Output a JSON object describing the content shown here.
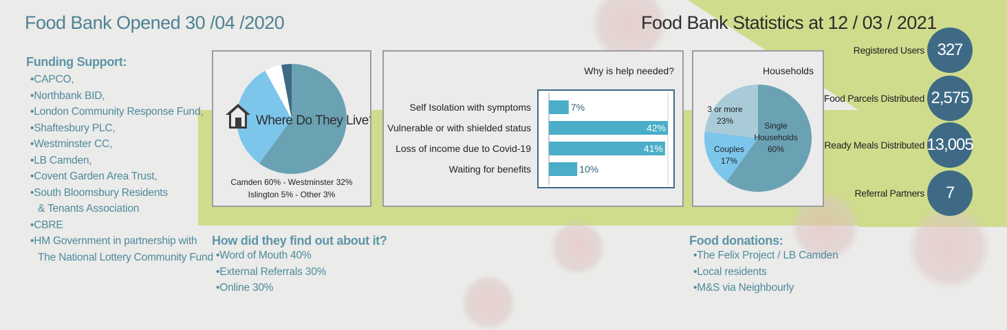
{
  "title_left": "Food Bank Opened 30 /04 /2020",
  "title_right": "Food Bank Statistics at 12 / 03 / 2021",
  "funding": {
    "heading": "Funding Support:",
    "items": [
      "CAPCO,",
      "Northbank BID,",
      "London Community Response Fund,",
      "Shaftesbury PLC,",
      "Westminster CC,",
      "LB Camden,",
      "Covent Garden Area Trust,",
      "South Bloomsbury Residents",
      "& Tenants Association",
      "CBRE",
      "HM Government in partnership with",
      "The National Lottery Community Fund"
    ]
  },
  "find_out": {
    "heading": "How did they find out about it?",
    "items": [
      "Word of Mouth 40%",
      "External Referrals 30%",
      "Online 30%"
    ]
  },
  "donations": {
    "heading": "Food donations:",
    "items": [
      "The Felix Project / LB Camden",
      "Local residents",
      "M&S via Neighbourly"
    ]
  },
  "stats": [
    {
      "label": "Registered Users",
      "value": "327"
    },
    {
      "label": "Food Parcels Distributed",
      "value": "2,575"
    },
    {
      "label": "Ready Meals Distributed",
      "value": "13,005"
    },
    {
      "label": "Referral Partners",
      "value": "7"
    }
  ],
  "colors": {
    "accent": "#4aaec8",
    "dark_circle": "#3e6a85",
    "teal": "#5d9aab",
    "green": "#cfdc8c"
  },
  "icons": [
    "house-icon",
    "virus-icon"
  ],
  "chart_data": [
    {
      "type": "pie",
      "title": "Where Do They Live?",
      "caption_line1": "Camden 60% - Westminster 32%",
      "caption_line2": "Islington 5% - Other 3%",
      "categories": [
        "Camden",
        "Westminster",
        "Islington",
        "Other"
      ],
      "values": [
        60,
        32,
        5,
        3
      ],
      "colors": [
        "#6aa2b4",
        "#7cc6ec",
        "#ffffff",
        "#3e6a85"
      ]
    },
    {
      "type": "bar",
      "orientation": "horizontal",
      "title": "Why is help needed?",
      "categories": [
        "Self Isolation with symptoms",
        "Vulnerable or with shielded status",
        "Loss of income due to Covid-19",
        "Waiting for benefits"
      ],
      "values": [
        7,
        42,
        41,
        10
      ],
      "value_labels": [
        "7%",
        "42%",
        "41%",
        "10%"
      ],
      "xlim": [
        0,
        42
      ],
      "color": "#4aaec8"
    },
    {
      "type": "pie",
      "title": "Households",
      "categories": [
        "Single Households",
        "Couples",
        "3 or more"
      ],
      "labels": [
        [
          "Single",
          "Households",
          "60%"
        ],
        [
          "Couples",
          "17%"
        ],
        [
          "3 or more",
          "23%"
        ]
      ],
      "values": [
        60,
        17,
        23
      ],
      "colors": [
        "#6aa2b4",
        "#7cc6ec",
        "#a9cbd8"
      ]
    }
  ]
}
